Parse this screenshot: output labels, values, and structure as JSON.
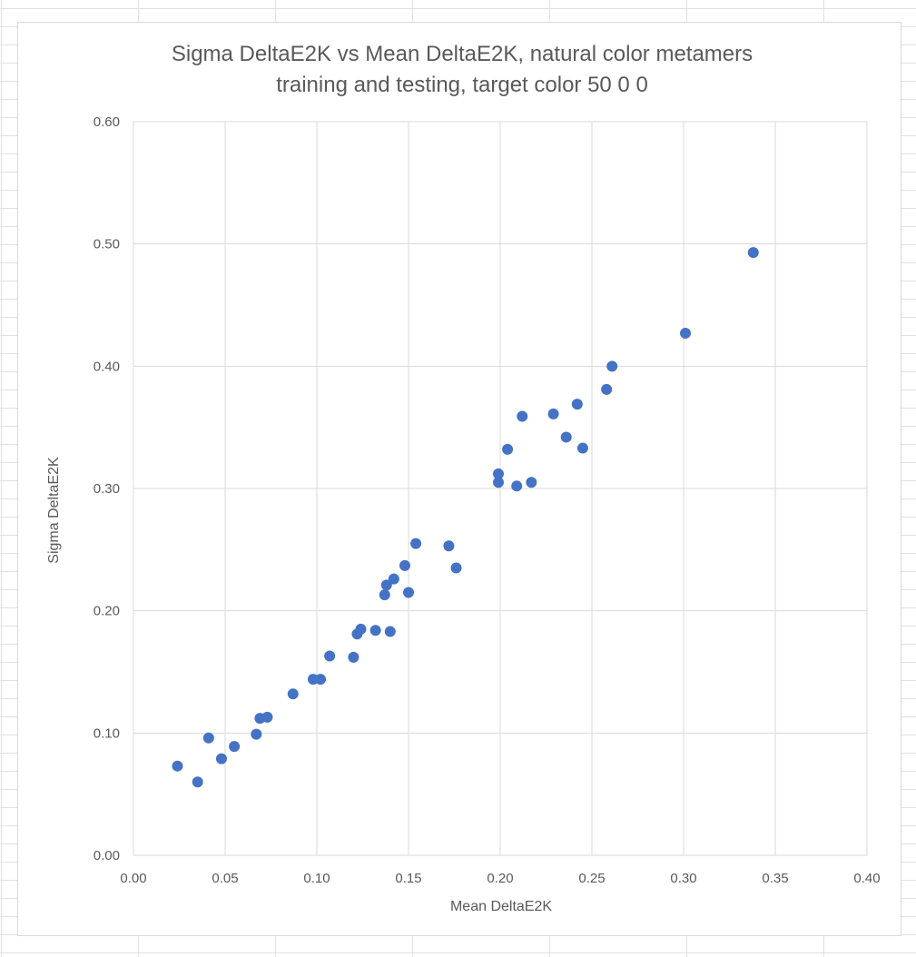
{
  "chart_data": {
    "type": "scatter",
    "title": [
      "Sigma DeltaE2K vs Mean DeltaE2K, natural color metamers",
      "training and testing, target color 50 0 0"
    ],
    "xlabel": "Mean DeltaE2K",
    "ylabel": "Sigma DeltaE2K",
    "xlim": [
      0,
      0.4
    ],
    "ylim": [
      0,
      0.6
    ],
    "xticks": [
      "0.00",
      "0.05",
      "0.10",
      "0.15",
      "0.20",
      "0.25",
      "0.30",
      "0.35",
      "0.40"
    ],
    "yticks": [
      "0.00",
      "0.10",
      "0.20",
      "0.30",
      "0.40",
      "0.50",
      "0.60"
    ],
    "grid": true,
    "marker_color": "#4472c4",
    "points": [
      [
        0.024,
        0.073
      ],
      [
        0.035,
        0.06
      ],
      [
        0.041,
        0.096
      ],
      [
        0.048,
        0.079
      ],
      [
        0.055,
        0.089
      ],
      [
        0.067,
        0.099
      ],
      [
        0.069,
        0.112
      ],
      [
        0.073,
        0.113
      ],
      [
        0.087,
        0.132
      ],
      [
        0.098,
        0.144
      ],
      [
        0.102,
        0.144
      ],
      [
        0.107,
        0.163
      ],
      [
        0.12,
        0.162
      ],
      [
        0.122,
        0.181
      ],
      [
        0.124,
        0.185
      ],
      [
        0.132,
        0.184
      ],
      [
        0.137,
        0.213
      ],
      [
        0.138,
        0.221
      ],
      [
        0.14,
        0.183
      ],
      [
        0.142,
        0.226
      ],
      [
        0.148,
        0.237
      ],
      [
        0.15,
        0.215
      ],
      [
        0.154,
        0.255
      ],
      [
        0.172,
        0.253
      ],
      [
        0.176,
        0.235
      ],
      [
        0.199,
        0.305
      ],
      [
        0.199,
        0.312
      ],
      [
        0.204,
        0.332
      ],
      [
        0.209,
        0.302
      ],
      [
        0.212,
        0.359
      ],
      [
        0.217,
        0.305
      ],
      [
        0.229,
        0.361
      ],
      [
        0.236,
        0.342
      ],
      [
        0.242,
        0.369
      ],
      [
        0.245,
        0.333
      ],
      [
        0.258,
        0.381
      ],
      [
        0.261,
        0.4
      ],
      [
        0.301,
        0.427
      ],
      [
        0.338,
        0.493
      ]
    ]
  }
}
